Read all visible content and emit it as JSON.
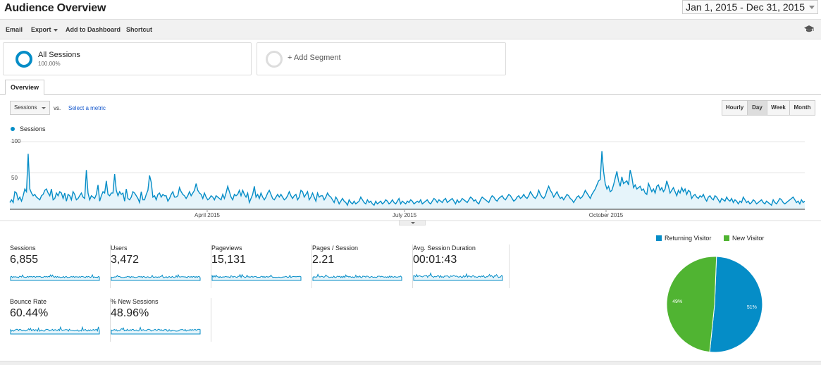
{
  "header": {
    "title": "Audience Overview",
    "date_range": "Jan 1, 2015 - Dec 31, 2015"
  },
  "toolbar": {
    "email": "Email",
    "export": "Export",
    "add_to_dashboard": "Add to Dashboard",
    "shortcut": "Shortcut",
    "help_icon": "graduation-cap-icon"
  },
  "segments": {
    "all_sessions": {
      "name": "All Sessions",
      "percent": "100.00%"
    },
    "add_segment": "+ Add Segment"
  },
  "tabs": {
    "overview": "Overview"
  },
  "controls": {
    "metric": "Sessions",
    "vs": "vs.",
    "select_metric": "Select a metric",
    "granularity": [
      "Hourly",
      "Day",
      "Week",
      "Month"
    ],
    "active_granularity": "Day"
  },
  "colors": {
    "primary": "#058dc7",
    "fill": "#e6f4fa",
    "returning": "#058dc7",
    "new": "#50b432"
  },
  "chart_data": [
    {
      "type": "area",
      "series": [
        {
          "name": "Sessions",
          "values": [
            10,
            14,
            10,
            26,
            24,
            14,
            18,
            12,
            20,
            30,
            26,
            82,
            30,
            24,
            20,
            22,
            18,
            16,
            14,
            20,
            22,
            28,
            30,
            24,
            20,
            30,
            14,
            16,
            24,
            20,
            26,
            24,
            16,
            24,
            12,
            22,
            20,
            14,
            26,
            22,
            14,
            16,
            20,
            24,
            18,
            16,
            58,
            24,
            14,
            20,
            18,
            16,
            22,
            36,
            12,
            20,
            26,
            24,
            42,
            22,
            20,
            24,
            24,
            52,
            28,
            20,
            26,
            22,
            24,
            12,
            30,
            16,
            14,
            18,
            26,
            24,
            20,
            16,
            10,
            26,
            14,
            14,
            22,
            28,
            50,
            40,
            18,
            20,
            14,
            22,
            24,
            18,
            22,
            20,
            20,
            12,
            16,
            22,
            26,
            18,
            18,
            20,
            32,
            26,
            22,
            20,
            16,
            20,
            26,
            20,
            24,
            28,
            38,
            28,
            24,
            22,
            16,
            24,
            18,
            14,
            16,
            20,
            18,
            14,
            20,
            18,
            16,
            14,
            22,
            16,
            24,
            34,
            26,
            18,
            14,
            22,
            20,
            22,
            28,
            20,
            28,
            22,
            18,
            24,
            10,
            16,
            22,
            34,
            18,
            22,
            16,
            24,
            18,
            14,
            18,
            24,
            28,
            22,
            16,
            14,
            18,
            22,
            18,
            22,
            18,
            14,
            16,
            20,
            26,
            20,
            16,
            20,
            22,
            14,
            18,
            28,
            26,
            18,
            22,
            26,
            14,
            18,
            24,
            18,
            12,
            24,
            18,
            20,
            20,
            14,
            18,
            24,
            20,
            18,
            14,
            10,
            18,
            14,
            8,
            12,
            16,
            12,
            10,
            6,
            14,
            10,
            8,
            12,
            8,
            10,
            12,
            18,
            14,
            10,
            8,
            14,
            10,
            12,
            8,
            6,
            12,
            8,
            10,
            12,
            8,
            10,
            14,
            12,
            8,
            10,
            14,
            10,
            8,
            12,
            16,
            8,
            12,
            10,
            8,
            12,
            10,
            14,
            12,
            8,
            10,
            12,
            10,
            14,
            8,
            10,
            12,
            14,
            10,
            8,
            12,
            16,
            14,
            10,
            14,
            12,
            10,
            14,
            16,
            10,
            12,
            14,
            16,
            12,
            8,
            14,
            10,
            12,
            16,
            14,
            12,
            10,
            14,
            18,
            16,
            12,
            14,
            10,
            8,
            14,
            18,
            16,
            14,
            12,
            10,
            16,
            20,
            18,
            14,
            12,
            16,
            18,
            20,
            16,
            14,
            18,
            22,
            20,
            16,
            12,
            14,
            18,
            20,
            16,
            18,
            22,
            18,
            16,
            20,
            26,
            22,
            18,
            16,
            20,
            28,
            22,
            18,
            16,
            20,
            28,
            34,
            28,
            24,
            18,
            22,
            26,
            20,
            16,
            18,
            14,
            18,
            22,
            20,
            16,
            14,
            10,
            14,
            18,
            20,
            16,
            18,
            22,
            28,
            24,
            20,
            16,
            22,
            26,
            30,
            36,
            42,
            44,
            86,
            56,
            38,
            30,
            34,
            26,
            28,
            36,
            46,
            56,
            42,
            34,
            48,
            38,
            40,
            42,
            36,
            58,
            48,
            32,
            36,
            30,
            32,
            34,
            28,
            30,
            24,
            22,
            38,
            32,
            26,
            30,
            24,
            34,
            36,
            28,
            32,
            26,
            30,
            42,
            34,
            24,
            28,
            32,
            26,
            20,
            28,
            24,
            32,
            26,
            30,
            22,
            28,
            26,
            16,
            20,
            22,
            18,
            16,
            20,
            18,
            22,
            16,
            12,
            18,
            20,
            16,
            14,
            20,
            18,
            14,
            10,
            16,
            14,
            12,
            18,
            14,
            12,
            16,
            10,
            14,
            12,
            8,
            12,
            10,
            18,
            14,
            10,
            12,
            8,
            10,
            14,
            12,
            8,
            10,
            12,
            14,
            10,
            8,
            12,
            10,
            8,
            6,
            14,
            10,
            8,
            12,
            16,
            14,
            10,
            8,
            10,
            12,
            14,
            16,
            18,
            14,
            10,
            12,
            8,
            14,
            10,
            12
          ]
        }
      ],
      "ylim": [
        0,
        100
      ],
      "yticks": [
        "100",
        "50"
      ],
      "xticks": [
        "April 2015",
        "July 2015",
        "October 2015"
      ]
    },
    {
      "type": "pie",
      "series": [
        {
          "name": "Returning Visitor",
          "value": 51,
          "label": "51%"
        },
        {
          "name": "New Visitor",
          "value": 49,
          "label": "49%"
        }
      ]
    }
  ],
  "metrics": [
    {
      "label": "Sessions",
      "value": "6,855"
    },
    {
      "label": "Users",
      "value": "3,472"
    },
    {
      "label": "Pageviews",
      "value": "15,131"
    },
    {
      "label": "Pages / Session",
      "value": "2.21"
    },
    {
      "label": "Avg. Session Duration",
      "value": "00:01:43"
    },
    {
      "label": "Bounce Rate",
      "value": "60.44%"
    },
    {
      "label": "% New Sessions",
      "value": "48.96%"
    }
  ]
}
